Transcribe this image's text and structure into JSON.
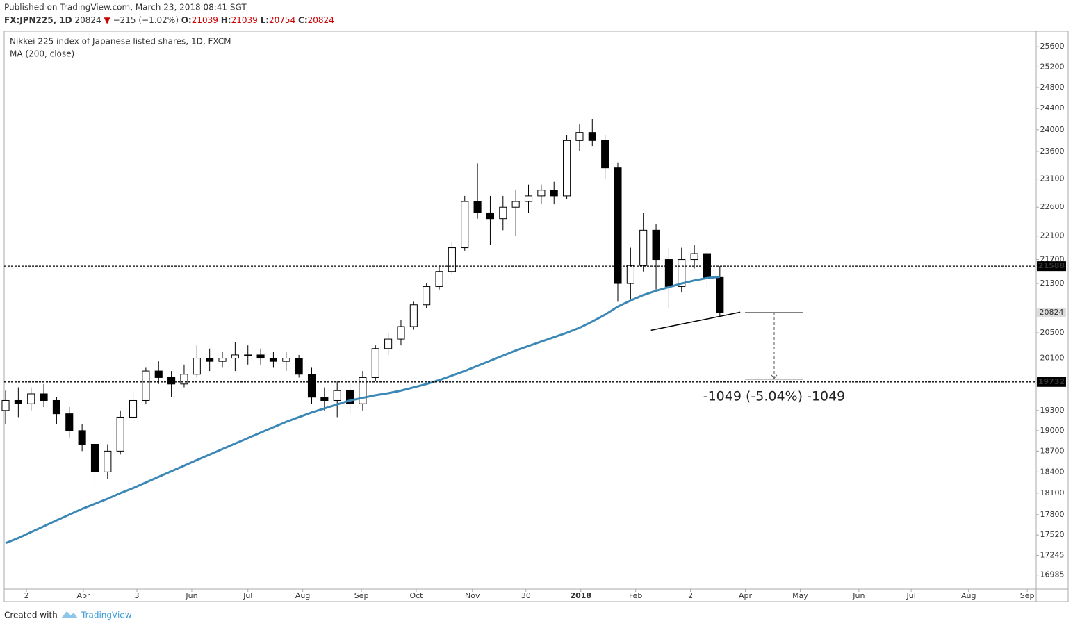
{
  "header": {
    "published": "Published on TradingView.com, March 23, 2018 08:41 SGT",
    "symbol": "FX:JPN225, 1D",
    "last": "20824",
    "change": "−215 (−1.02%)",
    "ohlc": [
      {
        "label": "O:",
        "value": "21039"
      },
      {
        "label": "H:",
        "value": "21039"
      },
      {
        "label": "L:",
        "value": "20754"
      },
      {
        "label": "C:",
        "value": "20824"
      }
    ]
  },
  "footer": {
    "created": "Created with",
    "brand": "TradingView"
  },
  "chart_data": {
    "type": "candlestick",
    "title": "Nikkei 225 index of Japanese listed shares, 1D, FXCM",
    "log_scale": true,
    "x": [
      0,
      1,
      2,
      3,
      4,
      5,
      6,
      7,
      8,
      9,
      10,
      11,
      12,
      13,
      14,
      15,
      16,
      17,
      18,
      19,
      20,
      21,
      22,
      23,
      24,
      25,
      26,
      27,
      28,
      29,
      30,
      31,
      32,
      33,
      34,
      35,
      36,
      37,
      38,
      39,
      40,
      41,
      42,
      43,
      44,
      45,
      46,
      47,
      48,
      49,
      50,
      51,
      52,
      53,
      54,
      55,
      56
    ],
    "open": [
      19300,
      19450,
      19400,
      19550,
      19450,
      19250,
      19000,
      18800,
      18400,
      18700,
      19200,
      19450,
      19900,
      19800,
      19700,
      19850,
      20100,
      20050,
      20100,
      20150,
      20150,
      20100,
      20050,
      20100,
      19850,
      19500,
      19450,
      19600,
      19400,
      19800,
      20250,
      20400,
      20600,
      20950,
      21250,
      21500,
      21900,
      22700,
      22500,
      22400,
      22600,
      22700,
      22800,
      22900,
      22800,
      23800,
      23950,
      23800,
      23300,
      21300,
      21600,
      22200,
      21700,
      21250,
      21700,
      21800,
      21400
    ],
    "high": [
      19600,
      19650,
      19650,
      19700,
      19500,
      19350,
      19100,
      18850,
      18800,
      19300,
      19600,
      19950,
      20050,
      19900,
      20000,
      20300,
      20250,
      20200,
      20350,
      20300,
      20250,
      20200,
      20200,
      20150,
      19950,
      19650,
      19750,
      19750,
      19900,
      20300,
      20500,
      20700,
      21000,
      21300,
      21600,
      22000,
      22800,
      23380,
      22800,
      22800,
      22900,
      23000,
      23000,
      23050,
      23900,
      24100,
      24200,
      23900,
      23400,
      21900,
      22500,
      22300,
      21900,
      21900,
      21950,
      21900,
      21588
    ],
    "low": [
      19100,
      19200,
      19300,
      19350,
      19100,
      18900,
      18700,
      18250,
      18300,
      18650,
      19150,
      19400,
      19700,
      19500,
      19650,
      19800,
      19900,
      19950,
      19900,
      20000,
      20000,
      19950,
      19900,
      19800,
      19400,
      19300,
      19200,
      19250,
      19300,
      19750,
      20150,
      20300,
      20550,
      20900,
      21200,
      21450,
      21850,
      22400,
      21950,
      22200,
      22100,
      22500,
      22650,
      22650,
      22750,
      23600,
      23700,
      23100,
      21000,
      21000,
      21500,
      21200,
      20900,
      21150,
      21550,
      21200,
      20754
    ],
    "close": [
      19450,
      19400,
      19550,
      19450,
      19250,
      19000,
      18800,
      18400,
      18700,
      19200,
      19450,
      19900,
      19800,
      19700,
      19850,
      20100,
      20050,
      20100,
      20150,
      20150,
      20100,
      20050,
      20100,
      19850,
      19500,
      19450,
      19600,
      19400,
      19800,
      20250,
      20400,
      20600,
      20950,
      21250,
      21500,
      21900,
      22700,
      22500,
      22400,
      22600,
      22700,
      22800,
      22900,
      22800,
      23800,
      23950,
      23800,
      23300,
      21300,
      21600,
      22200,
      21700,
      21250,
      21700,
      21800,
      21400,
      20824
    ],
    "ma": {
      "name": "MA (200, close)",
      "color": "#3b87b5",
      "values": [
        17410,
        17480,
        17560,
        17640,
        17720,
        17800,
        17880,
        17950,
        18020,
        18100,
        18170,
        18250,
        18330,
        18410,
        18490,
        18570,
        18650,
        18730,
        18810,
        18890,
        18970,
        19050,
        19130,
        19200,
        19270,
        19330,
        19390,
        19450,
        19490,
        19530,
        19560,
        19600,
        19650,
        19700,
        19760,
        19830,
        19900,
        19980,
        20060,
        20140,
        20220,
        20290,
        20360,
        20430,
        20500,
        20580,
        20680,
        20790,
        20920,
        21020,
        21110,
        21180,
        21240,
        21300,
        21350,
        21390,
        21410
      ]
    },
    "levels": [
      21588,
      19732
    ],
    "last_price": 20824,
    "trendline": {
      "x": [
        50.6,
        57.6
      ],
      "y": [
        20540,
        20830
      ]
    },
    "measure": {
      "from": 20824,
      "to": 19775,
      "label": "-1049 (-5.04%) -1049"
    },
    "xlim": [
      0,
      80.8
    ],
    "ylim": [
      16800,
      25880
    ],
    "xticks": [
      {
        "value": 1.64,
        "label": "2"
      },
      {
        "value": 6.1,
        "label": "Apr"
      },
      {
        "value": 10.3,
        "label": "3"
      },
      {
        "value": 14.6,
        "label": "Jun"
      },
      {
        "value": 19.0,
        "label": "Jul"
      },
      {
        "value": 23.3,
        "label": "Aug"
      },
      {
        "value": 27.9,
        "label": "Sep"
      },
      {
        "value": 32.2,
        "label": "Oct"
      },
      {
        "value": 36.6,
        "label": "Nov"
      },
      {
        "value": 40.8,
        "label": "30"
      },
      {
        "value": 45.1,
        "label": "2018"
      },
      {
        "value": 49.4,
        "label": "Feb"
      },
      {
        "value": 53.7,
        "label": "2"
      },
      {
        "value": 58.0,
        "label": "Apr"
      },
      {
        "value": 62.3,
        "label": "May"
      },
      {
        "value": 66.9,
        "label": "Jun"
      },
      {
        "value": 71.0,
        "label": "Jul"
      },
      {
        "value": 75.5,
        "label": "Aug"
      },
      {
        "value": 80.1,
        "label": "Sep"
      }
    ],
    "yticks": [
      25600,
      25200,
      24800,
      24400,
      24000,
      23600,
      23100,
      22600,
      22100,
      21700,
      21300,
      20500,
      20100,
      19300,
      19000,
      18700,
      18400,
      18100,
      17800,
      17520,
      17245,
      16985
    ]
  }
}
